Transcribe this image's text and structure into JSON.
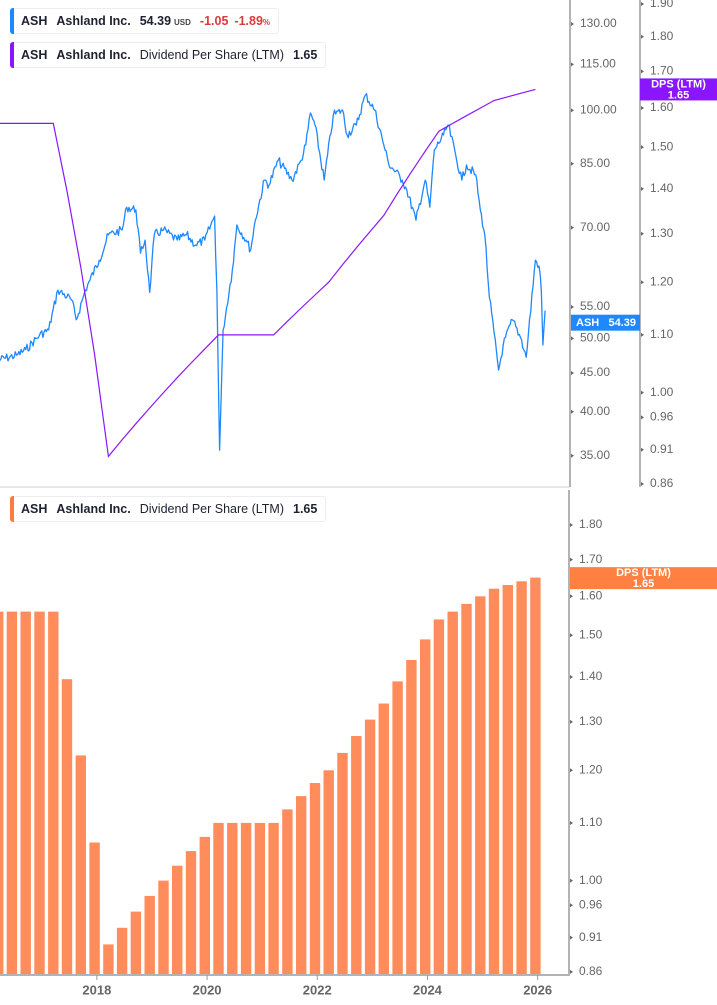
{
  "legend_price": {
    "ticker": "ASH",
    "name": "Ashland Inc.",
    "price": "54.39",
    "currency": "USD",
    "change": "-1.05",
    "change_pct": "-1.89",
    "pct_sign": "%"
  },
  "legend_dps_top": {
    "ticker": "ASH",
    "name": "Ashland Inc.",
    "metric": "Dividend Per Share (LTM)",
    "value": "1.65"
  },
  "legend_dps_bottom": {
    "ticker": "ASH",
    "name": "Ashland Inc.",
    "metric": "Dividend Per Share (LTM)",
    "value": "1.65"
  },
  "colors": {
    "price": "#1e88ff",
    "dps_line": "#8a16ff",
    "dps_bar": "#ff8c5a",
    "dps_tag_bottom": "#ff8040",
    "axis": "#b3b3b3",
    "negative": "#d93b3b"
  },
  "chart_data": [
    {
      "type": "line",
      "scale": "log",
      "series": [
        {
          "name": "ASH",
          "axis": "price",
          "values": [
            [
              "2016-03",
              46.8
            ],
            [
              "2016-07",
              47.5
            ],
            [
              "2016-09",
              48.3
            ],
            [
              "2016-12",
              50.5
            ],
            [
              "2017-02",
              51.3
            ],
            [
              "2017-04",
              57.9
            ],
            [
              "2017-07",
              56.2
            ],
            [
              "2017-08",
              52.9
            ],
            [
              "2017-10",
              57.9
            ],
            [
              "2017-11",
              59.7
            ],
            [
              "2018-01",
              63.4
            ],
            [
              "2018-03",
              68.5
            ],
            [
              "2018-06",
              69.5
            ],
            [
              "2018-07",
              74.5
            ],
            [
              "2018-09",
              73.9
            ],
            [
              "2018-10",
              64.8
            ],
            [
              "2018-11",
              67.4
            ],
            [
              "2018-12",
              57.5
            ],
            [
              "2019-01",
              68.5
            ],
            [
              "2019-03",
              69.5
            ],
            [
              "2019-06",
              67.4
            ],
            [
              "2019-08",
              68.5
            ],
            [
              "2019-10",
              66.4
            ],
            [
              "2019-12",
              67.4
            ],
            [
              "2020-02-20",
              72.5
            ],
            [
              "2020-03-05",
              57.9
            ],
            [
              "2020-03-23",
              35.6
            ],
            [
              "2020-04",
              51.3
            ],
            [
              "2020-06",
              61.5
            ],
            [
              "2020-07",
              70.6
            ],
            [
              "2020-09",
              67.4
            ],
            [
              "2020-10",
              65.4
            ],
            [
              "2020-11",
              71.6
            ],
            [
              "2021-01",
              80.9
            ],
            [
              "2021-02",
              79.7
            ],
            [
              "2021-04",
              85.9
            ],
            [
              "2021-07",
              80.9
            ],
            [
              "2021-09",
              85.9
            ],
            [
              "2021-10",
              90.0
            ],
            [
              "2021-11",
              99.2
            ],
            [
              "2021-12",
              95.6
            ],
            [
              "2022-02",
              80.9
            ],
            [
              "2022-04",
              98.6
            ],
            [
              "2022-06",
              100.1
            ],
            [
              "2022-07",
              92.8
            ],
            [
              "2022-09",
              95.6
            ],
            [
              "2022-11",
              104.8
            ],
            [
              "2023-01",
              100.1
            ],
            [
              "2023-03",
              90.0
            ],
            [
              "2023-04",
              85.2
            ],
            [
              "2023-07",
              80.9
            ],
            [
              "2023-08",
              78.5
            ],
            [
              "2023-10",
              71.6
            ],
            [
              "2023-12",
              80.9
            ],
            [
              "2024-01",
              74.5
            ],
            [
              "2024-02",
              88.6
            ],
            [
              "2024-04",
              92.8
            ],
            [
              "2024-05",
              95.6
            ],
            [
              "2024-08",
              80.9
            ],
            [
              "2024-09",
              84.7
            ],
            [
              "2024-11",
              82.2
            ],
            [
              "2024-12",
              73.9
            ],
            [
              "2025-01",
              68.5
            ],
            [
              "2025-02",
              56.6
            ],
            [
              "2025-04",
              45.4
            ],
            [
              "2025-05",
              49.0
            ],
            [
              "2025-07",
              52.9
            ],
            [
              "2025-09",
              49.8
            ],
            [
              "2025-10",
              47.2
            ],
            [
              "2025-12",
              63.4
            ],
            [
              "2026-01-10",
              62.3
            ],
            [
              "2026-01-25",
              57.9
            ],
            [
              "2026-02-05",
              49.0
            ],
            [
              "2026-02-20",
              54.39
            ]
          ]
        },
        {
          "name": "DPS (LTM)",
          "axis": "dps",
          "ref": "dps_quarterly"
        }
      ],
      "price_axis": {
        "ticks": [
          "130.00",
          "115.00",
          "100.00",
          "85.00",
          "70.00",
          "55.00",
          "50.00",
          "45.00",
          "40.00",
          "35.00"
        ],
        "last_label": "ASH",
        "last_value": "54.39"
      },
      "dps_axis": {
        "ticks": [
          "1.90",
          "1.80",
          "1.70",
          "1.60",
          "1.50",
          "1.40",
          "1.30",
          "1.20",
          "1.10",
          "1.00",
          "0.96",
          "0.91",
          "0.86"
        ],
        "last_label": "DPS (LTM)",
        "last_value": "1.65"
      }
    },
    {
      "type": "bar",
      "scale": "log",
      "series": [
        {
          "name": "DPS (LTM)",
          "ref": "dps_quarterly"
        }
      ],
      "y_axis": {
        "ticks": [
          "1.80",
          "1.70",
          "1.60",
          "1.50",
          "1.40",
          "1.30",
          "1.20",
          "1.10",
          "1.00",
          "0.96",
          "0.91",
          "0.86"
        ],
        "last_label": "DPS (LTM)",
        "last_value": "1.65"
      },
      "x_axis": {
        "ticks": [
          "2018",
          "2020",
          "2022",
          "2024",
          "2026"
        ]
      }
    }
  ],
  "dps_quarterly": {
    "dates": [
      "2016-03",
      "2016-06",
      "2016-09",
      "2016-12",
      "2017-03",
      "2017-06",
      "2017-09",
      "2017-12",
      "2018-03",
      "2018-06",
      "2018-09",
      "2018-12",
      "2019-03",
      "2019-06",
      "2019-09",
      "2019-12",
      "2020-03",
      "2020-06",
      "2020-09",
      "2020-12",
      "2021-03",
      "2021-06",
      "2021-09",
      "2021-12",
      "2022-03",
      "2022-06",
      "2022-09",
      "2022-12",
      "2023-03",
      "2023-06",
      "2023-09",
      "2023-12",
      "2024-03",
      "2024-06",
      "2024-09",
      "2024-12",
      "2025-03",
      "2025-06",
      "2025-09",
      "2025-12"
    ],
    "values": [
      1.56,
      1.56,
      1.56,
      1.56,
      1.56,
      1.395,
      1.23,
      1.065,
      0.9,
      0.925,
      0.95,
      0.975,
      1.0,
      1.025,
      1.05,
      1.075,
      1.1,
      1.1,
      1.1,
      1.1,
      1.1,
      1.125,
      1.15,
      1.175,
      1.2,
      1.235,
      1.27,
      1.305,
      1.34,
      1.39,
      1.44,
      1.49,
      1.54,
      1.56,
      1.58,
      1.6,
      1.62,
      1.63,
      1.64,
      1.65
    ]
  }
}
